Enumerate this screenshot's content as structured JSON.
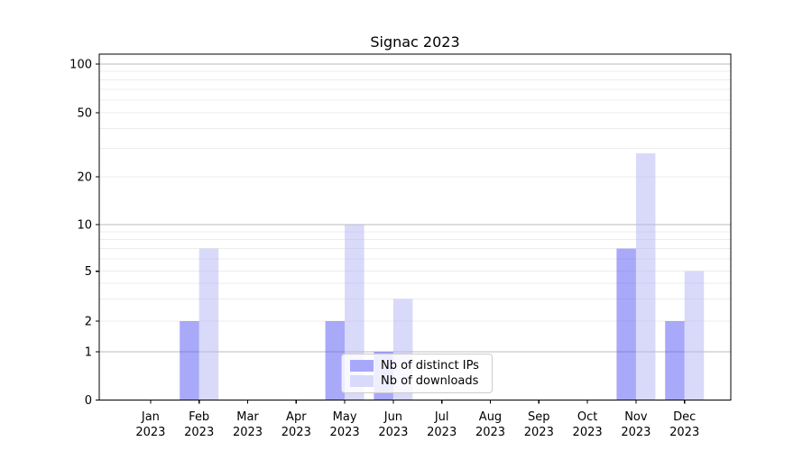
{
  "chart_data": {
    "type": "bar",
    "title": "Signac 2023",
    "categories": [
      {
        "month": "Jan",
        "year": "2023"
      },
      {
        "month": "Feb",
        "year": "2023"
      },
      {
        "month": "Mar",
        "year": "2023"
      },
      {
        "month": "Apr",
        "year": "2023"
      },
      {
        "month": "May",
        "year": "2023"
      },
      {
        "month": "Jun",
        "year": "2023"
      },
      {
        "month": "Jul",
        "year": "2023"
      },
      {
        "month": "Aug",
        "year": "2023"
      },
      {
        "month": "Sep",
        "year": "2023"
      },
      {
        "month": "Oct",
        "year": "2023"
      },
      {
        "month": "Nov",
        "year": "2023"
      },
      {
        "month": "Dec",
        "year": "2023"
      }
    ],
    "series": [
      {
        "name": "Nb of distinct IPs",
        "values": [
          0,
          2,
          0,
          0,
          2,
          1,
          0,
          0,
          0,
          0,
          7,
          2
        ],
        "legend_color": "#a8a8fa",
        "bar_fill": "rgba(84,84,245,0.5)"
      },
      {
        "name": "Nb of downloads",
        "values": [
          0,
          7,
          0,
          0,
          10,
          3,
          0,
          0,
          0,
          0,
          28,
          5
        ],
        "legend_color": "#d9d9fa",
        "bar_fill": "rgba(180,180,245,0.5)"
      }
    ],
    "y_axis": {
      "tick_values": [
        0,
        1,
        2,
        5,
        10,
        20,
        50,
        100
      ],
      "tick_labels": [
        "0",
        "1",
        "2",
        "5",
        "10",
        "20",
        "50",
        "100"
      ],
      "scale": "log-above-1",
      "ylim": [
        0,
        116
      ]
    },
    "grid": {
      "on": true,
      "major_values": [
        1,
        10,
        100
      ],
      "minor_values": [
        2,
        3,
        4,
        5,
        6,
        7,
        8,
        9,
        20,
        30,
        40,
        50,
        60,
        70,
        80,
        90
      ],
      "major_color": "#bbbbbb",
      "minor_color": "#ececec"
    },
    "legend": {
      "position": "lower-center",
      "entries": [
        "Nb of distinct IPs",
        "Nb of downloads"
      ]
    },
    "axis_color": "#000000",
    "text_color": "#000000"
  }
}
